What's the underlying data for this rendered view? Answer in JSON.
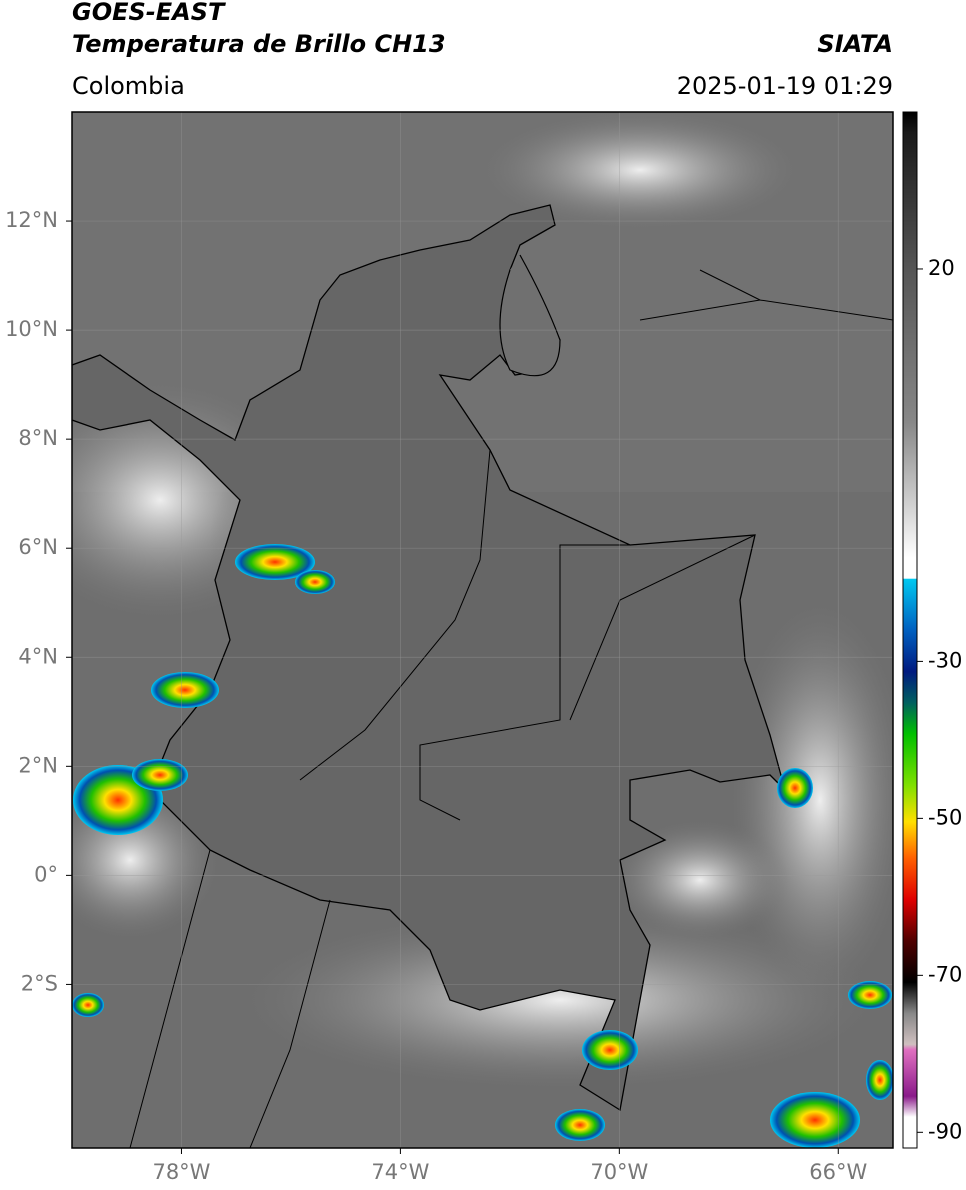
{
  "header": {
    "title": "GOES-EAST",
    "subtitle": "Temperatura de Brillo CH13",
    "source": "SIATA",
    "region": "Colombia",
    "datetime": "2025-01-19 01:29"
  },
  "map": {
    "xlim": [
      -80,
      -65
    ],
    "ylim": [
      -5,
      14
    ],
    "xticks": [
      {
        "value": -78,
        "label": "78°W"
      },
      {
        "value": -74,
        "label": "74°W"
      },
      {
        "value": -70,
        "label": "70°W"
      },
      {
        "value": -66,
        "label": "66°W"
      }
    ],
    "yticks": [
      {
        "value": 12,
        "label": "12°N"
      },
      {
        "value": 10,
        "label": "10°N"
      },
      {
        "value": 8,
        "label": "8°N"
      },
      {
        "value": 6,
        "label": "6°N"
      },
      {
        "value": 4,
        "label": "4°N"
      },
      {
        "value": 2,
        "label": "2°N"
      },
      {
        "value": 0,
        "label": "0°"
      },
      {
        "value": -2,
        "label": "2°S"
      }
    ]
  },
  "colorbar": {
    "lim": [
      -92,
      40
    ],
    "ticks": [
      20,
      -30,
      -50,
      -70,
      -90
    ]
  }
}
